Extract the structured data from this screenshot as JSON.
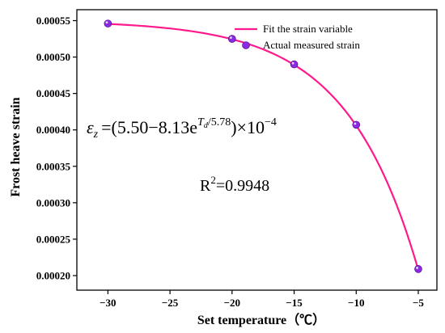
{
  "chart_data": {
    "type": "scatter",
    "xlabel": "Set temperature（℃）",
    "ylabel": "Frost heave strain",
    "xlim": [
      -32.5,
      -3.5
    ],
    "ylim": [
      0.00018,
      0.000565
    ],
    "xticks": [
      -30,
      -25,
      -20,
      -15,
      -10,
      -5
    ],
    "xtick_labels": [
      "−30",
      "−25",
      "−20",
      "−15",
      "−10",
      "−5"
    ],
    "yticks": [
      0.0002,
      0.00025,
      0.0003,
      0.00035,
      0.0004,
      0.00045,
      0.0005,
      0.00055
    ],
    "ytick_labels": [
      "0.00020",
      "0.00025",
      "0.00030",
      "0.00035",
      "0.00040",
      "0.00045",
      "0.00050",
      "0.00055"
    ],
    "grid": false,
    "legend_position": "top-right",
    "series": [
      {
        "name": "Fit the strain variable",
        "kind": "line",
        "color": "#ff1a8c",
        "fit": {
          "a": 5.5,
          "b": 8.13,
          "c": 5.78,
          "scale": 0.0001
        },
        "x_range": [
          -30,
          -5
        ]
      },
      {
        "name": "Actual measured strain",
        "kind": "scatter",
        "color": "#8a2be2",
        "x": [
          -30,
          -20,
          -15,
          -10,
          -5
        ],
        "y": [
          0.000546,
          0.000525,
          0.00049,
          0.000407,
          0.000209
        ]
      }
    ],
    "annotations": {
      "equation": {
        "lhs": "ε",
        "lhs_sub": "z",
        "rhs_pre": "=(5.50−8.13e",
        "exp_base": "T",
        "exp_sub": "d",
        "exp_rest": "/5.78",
        "rhs_post": ")×10",
        "pow": "−4"
      },
      "r2": {
        "label": "R",
        "sup": "2",
        "value": "=0.9948"
      }
    }
  }
}
